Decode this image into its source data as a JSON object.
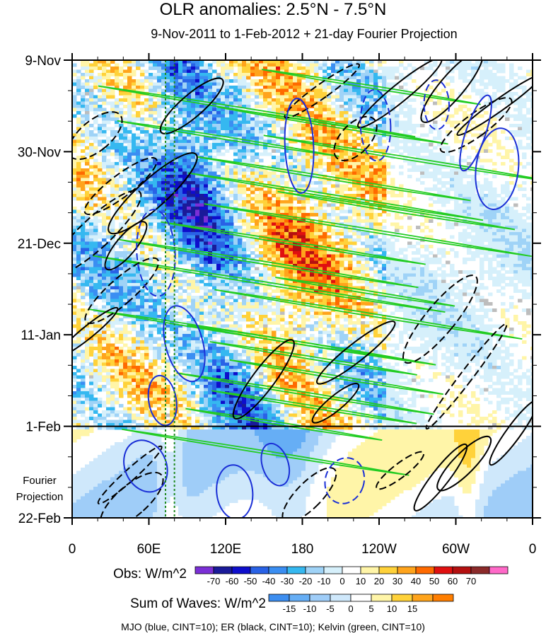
{
  "chart_data": {
    "type": "heatmap",
    "title": "OLR anomalies: 2.5°N - 7.5°N",
    "subtitle": "9-Nov-2011 to 1-Feb-2012 + 21-day Fourier Projection",
    "x_tick_labels": [
      "0",
      "60E",
      "120E",
      "180",
      "120W",
      "60W",
      "0"
    ],
    "x_ticks_deg_east": [
      0,
      60,
      120,
      180,
      240,
      300,
      360
    ],
    "y_tick_labels": [
      "9-Nov",
      "30-Nov",
      "21-Dec",
      "11-Jan",
      "1-Feb",
      "22-Feb"
    ],
    "y_ticks_day": [
      0,
      21,
      42,
      63,
      84,
      105
    ],
    "observation_end_day": 84,
    "projection_label": "Fourier\nProjection",
    "obs_colorbar": {
      "label": "Obs: W/m^2",
      "levels": [
        -70,
        -60,
        -50,
        -40,
        -30,
        -20,
        -10,
        0,
        10,
        20,
        30,
        40,
        50,
        60,
        70
      ],
      "colors": [
        "#7b2fd6",
        "#1a1a99",
        "#0e0ecc",
        "#2962e6",
        "#3a8ef2",
        "#35b8f0",
        "#9fd3f7",
        "#d6f0fb",
        "#ffffff",
        "#fff5a8",
        "#ffd23a",
        "#ffa41c",
        "#ff6a00",
        "#e01010",
        "#b41010",
        "#8b2a2a",
        "#ff69c8"
      ]
    },
    "waves_colorbar": {
      "label": "Sum of Waves: W/m^2",
      "levels": [
        -15,
        -10,
        -5,
        0,
        5,
        10,
        15
      ],
      "colors": [
        "#3d8ef0",
        "#66aef5",
        "#9fcdf8",
        "#cfe8fb",
        "#ffffff",
        "#fff5a8",
        "#ffd23a",
        "#ffa41c",
        "#ff7e00"
      ]
    },
    "contours": [
      {
        "wave": "MJO",
        "color": "blue",
        "cint": 10
      },
      {
        "wave": "ER",
        "color": "black",
        "cint": 10
      },
      {
        "wave": "Kelvin",
        "color": "green",
        "cint": 10
      }
    ],
    "footer": "MJO (blue, CINT=10); ER (black, CINT=10); Kelvin (green, CINT=10)"
  },
  "colors": {
    "mjo": "#1a2fd6",
    "er": "#000000",
    "kelvin": "#22cc22"
  }
}
